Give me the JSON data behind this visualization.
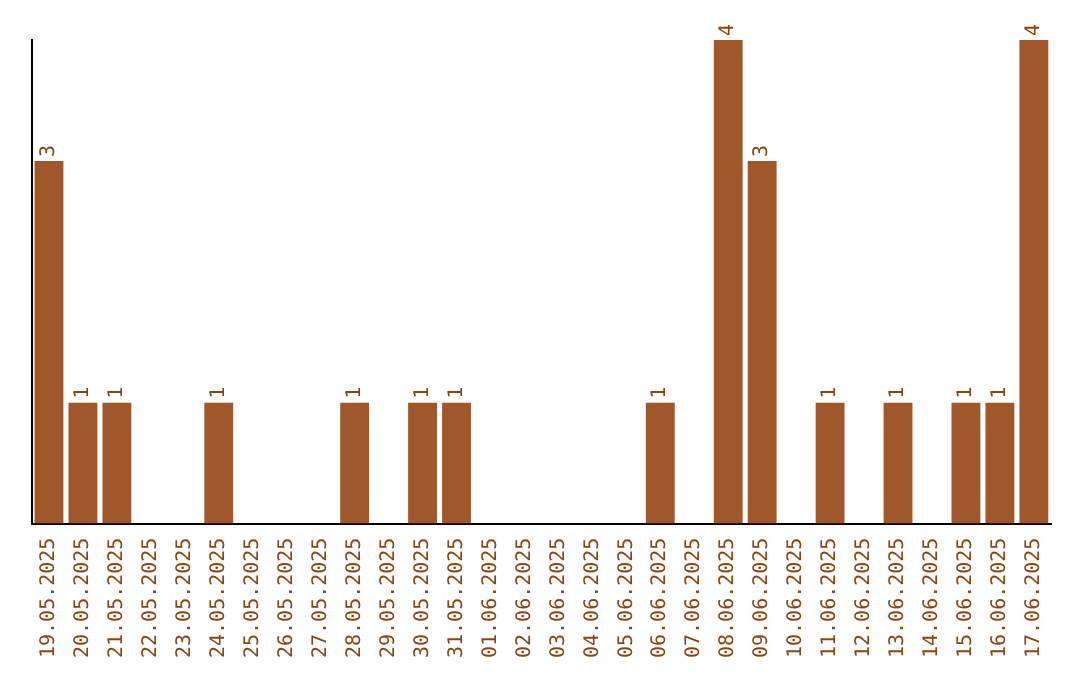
{
  "chart_data": {
    "type": "bar",
    "categories": [
      "19.05.2025",
      "20.05.2025",
      "21.05.2025",
      "22.05.2025",
      "23.05.2025",
      "24.05.2025",
      "25.05.2025",
      "26.05.2025",
      "27.05.2025",
      "28.05.2025",
      "29.05.2025",
      "30.05.2025",
      "31.05.2025",
      "01.06.2025",
      "02.06.2025",
      "03.06.2025",
      "04.06.2025",
      "05.06.2025",
      "06.06.2025",
      "07.06.2025",
      "08.06.2025",
      "09.06.2025",
      "10.06.2025",
      "11.06.2025",
      "12.06.2025",
      "13.06.2025",
      "14.06.2025",
      "15.06.2025",
      "16.06.2025",
      "17.06.2025"
    ],
    "values": [
      3,
      1,
      1,
      0,
      0,
      1,
      0,
      0,
      0,
      1,
      0,
      1,
      1,
      0,
      0,
      0,
      0,
      0,
      1,
      0,
      4,
      3,
      0,
      1,
      0,
      1,
      0,
      1,
      1,
      4
    ],
    "value_labels": [
      "3",
      "1",
      "1",
      null,
      null,
      "1",
      null,
      null,
      null,
      "1",
      null,
      "1",
      "1",
      null,
      null,
      null,
      null,
      null,
      "1",
      null,
      "4",
      "3",
      null,
      "1",
      null,
      "1",
      null,
      "1",
      "1",
      "4"
    ],
    "color": "#a0582b",
    "grid": false,
    "legend": false,
    "tick_labels": "x"
  }
}
